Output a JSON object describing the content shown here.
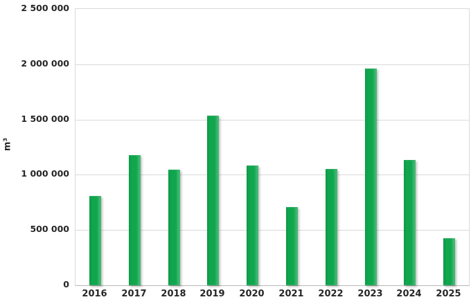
{
  "chart_data": {
    "type": "bar",
    "title": "",
    "xlabel": "",
    "ylabel": "m³",
    "categories": [
      "2016",
      "2017",
      "2018",
      "2019",
      "2020",
      "2021",
      "2022",
      "2023",
      "2024",
      "2025"
    ],
    "values": [
      810000,
      1175000,
      1045000,
      1535000,
      1085000,
      710000,
      1050000,
      1960000,
      1135000,
      425000
    ],
    "ylim": [
      0,
      2500000
    ],
    "ytick_interval": 500000,
    "ytick_labels_top_to_bottom": [
      "2 500 000",
      "2 000 000",
      "1 500 000",
      "1 000 000",
      "500 000",
      "0"
    ],
    "grid": true,
    "legend_position": "none",
    "colors": {
      "bar": "#0fa64d",
      "gridline": "#d9d9d9",
      "axis_line": "#b7b7b7",
      "text": "#262626",
      "background": "#ffffff"
    }
  }
}
